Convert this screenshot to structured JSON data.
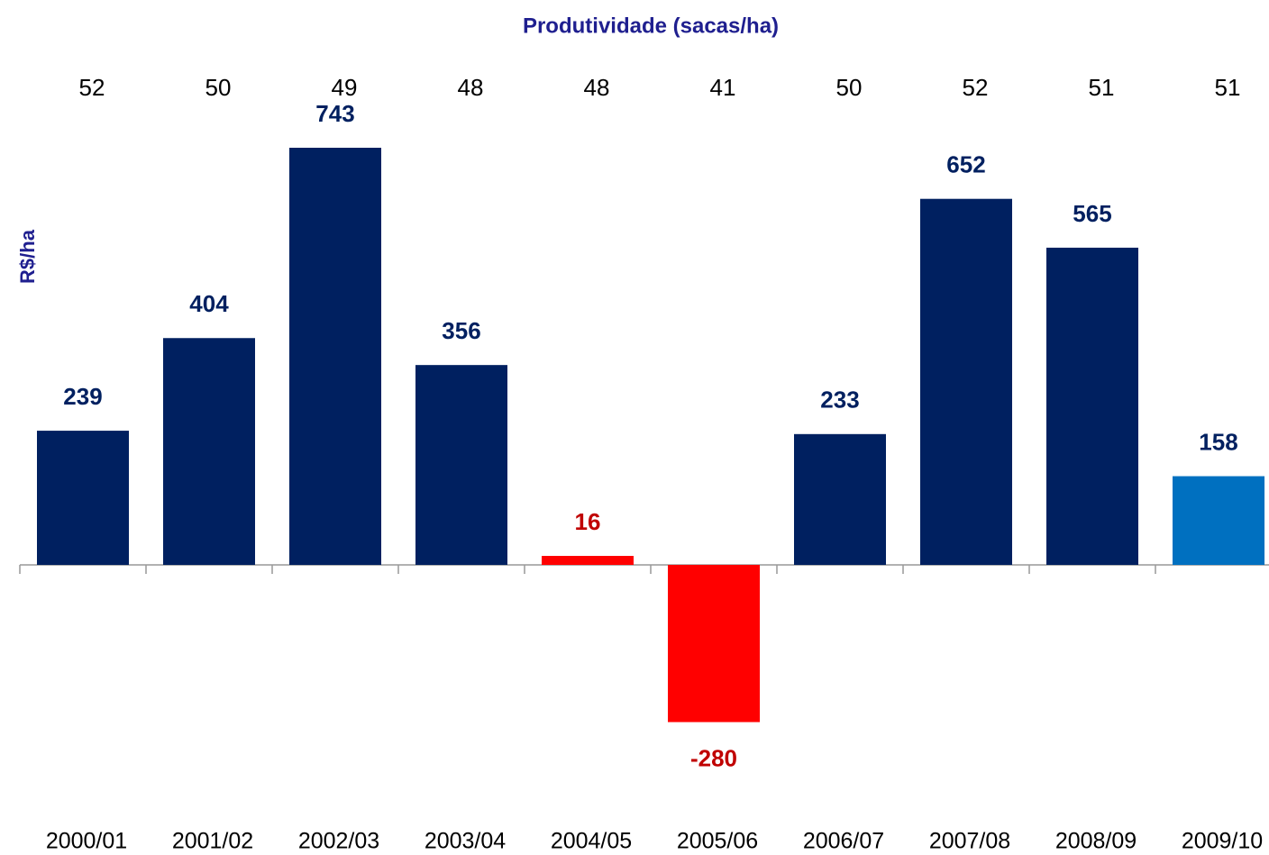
{
  "chart_data": {
    "type": "bar",
    "title": "Produtividade (sacas/ha)",
    "y_label": "R$/ha",
    "categories": [
      "2000/01",
      "2001/02",
      "2002/03",
      "2003/04",
      "2004/05",
      "2005/06",
      "2006/07",
      "2007/08",
      "2008/09",
      "2009/10"
    ],
    "values": [
      239,
      404,
      743,
      356,
      16,
      -280,
      233,
      652,
      565,
      158
    ],
    "colors": [
      "#002060",
      "#002060",
      "#002060",
      "#002060",
      "#ff0000",
      "#ff0000",
      "#002060",
      "#002060",
      "#002060",
      "#0070c0"
    ],
    "label_colors": [
      "#002060",
      "#002060",
      "#002060",
      "#002060",
      "#c00000",
      "#c00000",
      "#002060",
      "#002060",
      "#002060",
      "#002060"
    ],
    "productivity": [
      52,
      50,
      49,
      48,
      48,
      41,
      50,
      52,
      51,
      51
    ]
  }
}
